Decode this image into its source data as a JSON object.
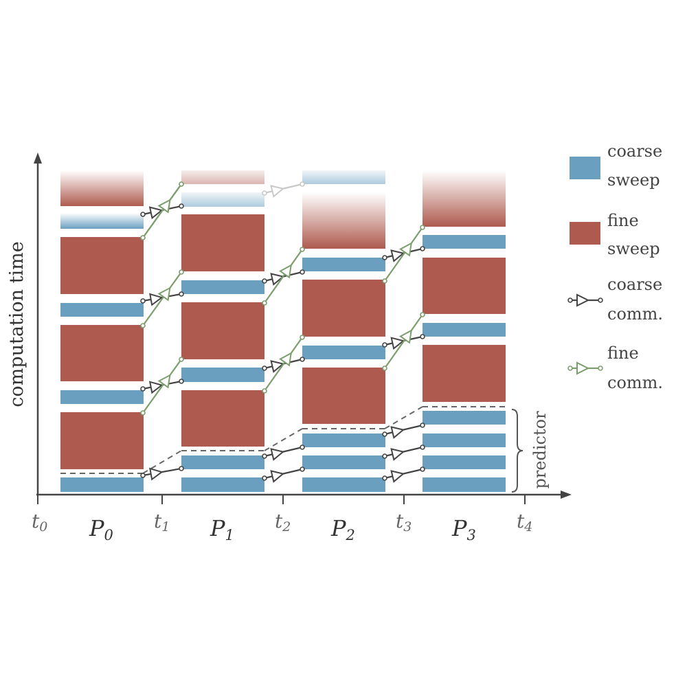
{
  "axes": {
    "ylabel": "computation time",
    "ticks": [
      "0",
      "1",
      "2",
      "3",
      "4"
    ],
    "tick_prefix": "t"
  },
  "processors": {
    "prefix": "P",
    "indices": [
      "0",
      "1",
      "2",
      "3"
    ]
  },
  "predictor_label": "predictor",
  "legend": {
    "coarse_sweep": [
      "coarse",
      "sweep"
    ],
    "fine_sweep": [
      "fine",
      "sweep"
    ],
    "coarse_comm": [
      "coarse",
      "comm."
    ],
    "fine_comm": [
      "fine",
      "comm."
    ]
  },
  "colors": {
    "coarse": "#6a9fc0",
    "fine": "#ae5a4e",
    "coarse_comm": "#444444",
    "fine_comm": "#7c9e6c",
    "faded_comm": "#c9c9c9",
    "axis": "#444444",
    "dashed": "#666666"
  },
  "chart_data": {
    "type": "timeline",
    "processor_columns": [
      {
        "processor": "P0",
        "blocks_bottom_to_top": [
          "coarse",
          "fine",
          "coarse",
          "fine",
          "coarse",
          "fine",
          "coarse",
          "fine (faded)"
        ]
      },
      {
        "processor": "P1",
        "blocks_bottom_to_top": [
          "coarse",
          "coarse",
          "fine",
          "coarse",
          "fine",
          "coarse",
          "fine",
          "coarse (faded)",
          "fine (faded)"
        ]
      },
      {
        "processor": "P2",
        "blocks_bottom_to_top": [
          "coarse",
          "coarse",
          "coarse",
          "fine",
          "coarse",
          "fine",
          "coarse",
          "fine (faded)",
          "coarse (faded)"
        ]
      },
      {
        "processor": "P3",
        "blocks_bottom_to_top": [
          "coarse",
          "coarse",
          "coarse",
          "coarse",
          "fine",
          "coarse",
          "fine",
          "coarse",
          "fine (faded)"
        ]
      }
    ]
  }
}
